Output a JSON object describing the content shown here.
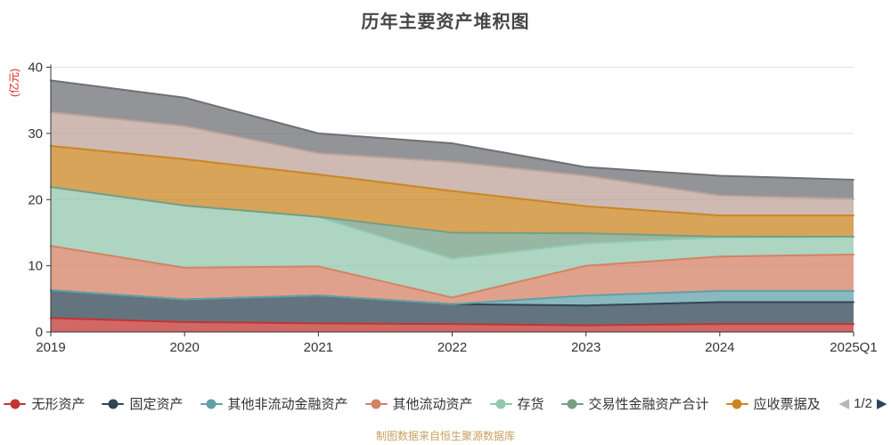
{
  "title": "历年主要资产堆积图",
  "footer": "制图数据来自恒生聚源数据库",
  "legend": {
    "pager": {
      "current": "1/2",
      "prev_icon": "◀",
      "next_icon": "▶"
    }
  },
  "colors": {
    "axis_line": "#333333",
    "tick_label": "#333333",
    "grid_line": "#e0e0e0",
    "y_axis_name": "#e02020",
    "title": "#464646",
    "footer": "#c9a05e",
    "pager_prev": "#b6b6b6",
    "pager_next": "#2f4554"
  },
  "chart_data": {
    "type": "area",
    "stacked": true,
    "title": "历年主要资产堆积图",
    "xlabel": "",
    "ylabel": "(亿元)",
    "ylim": [
      0,
      40
    ],
    "y_interval": 10,
    "grid": true,
    "legend_position": "bottom",
    "categories": [
      "2019",
      "2020",
      "2021",
      "2022",
      "2023",
      "2024",
      "2025Q1"
    ],
    "series": [
      {
        "name": "无形资产",
        "color": "#c23531",
        "in_legend": true,
        "values": [
          2.1,
          1.5,
          1.3,
          1.2,
          1.0,
          1.2,
          1.2
        ]
      },
      {
        "name": "固定资产",
        "color": "#2f4554",
        "in_legend": true,
        "values": [
          4.2,
          3.4,
          4.2,
          3.0,
          3.0,
          3.3,
          3.3
        ]
      },
      {
        "name": "其他非流动金融资产",
        "color": "#61a0a8",
        "in_legend": true,
        "values": [
          0,
          0,
          0,
          0,
          1.5,
          1.7,
          1.7
        ]
      },
      {
        "name": "其他流动资产",
        "color": "#d48265",
        "in_legend": true,
        "values": [
          6.7,
          4.8,
          4.4,
          1.0,
          4.5,
          5.2,
          5.5
        ]
      },
      {
        "name": "存货",
        "color": "#91c7ae",
        "in_legend": true,
        "values": [
          8.9,
          9.4,
          7.5,
          5.9,
          3.4,
          2.9,
          2.7
        ]
      },
      {
        "name": "交易性金融资产合计",
        "color": "#749f83",
        "in_legend": true,
        "values": [
          0,
          0,
          0,
          3.9,
          1.5,
          0.1,
          0
        ]
      },
      {
        "name": "应收票据及",
        "color": "#ca8622",
        "in_legend": true,
        "values": [
          6.2,
          7.0,
          6.4,
          6.3,
          4.1,
          3.2,
          3.2
        ]
      },
      {
        "name": "",
        "color": "#bda29a",
        "in_legend": false,
        "values": [
          5.1,
          5.0,
          3.2,
          4.4,
          4.6,
          3.0,
          2.5
        ]
      },
      {
        "name": "",
        "color": "#6e7074",
        "in_legend": false,
        "values": [
          4.8,
          4.3,
          3.0,
          2.8,
          1.3,
          3.0,
          2.9
        ]
      }
    ]
  }
}
